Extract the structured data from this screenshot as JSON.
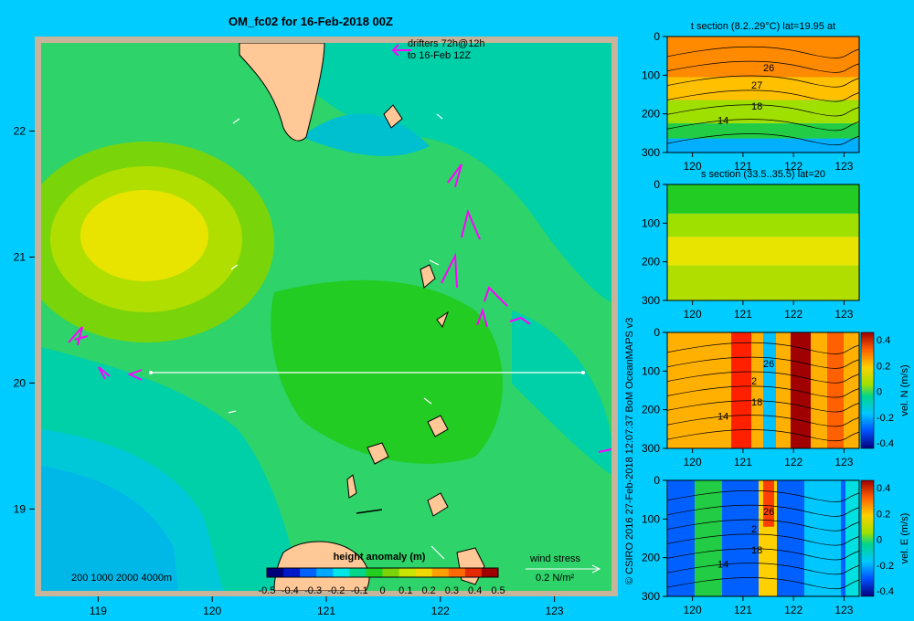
{
  "chart_data": [
    {
      "type": "heatmap",
      "title": "OM_fc02 for 16-Feb-2018 00Z",
      "x_ticks": [
        119,
        120,
        121,
        122,
        123
      ],
      "y_ticks": [
        19,
        20,
        21,
        22
      ],
      "xlim": [
        118.5,
        123.5
      ],
      "ylim": [
        18.35,
        22.7
      ],
      "section_line": {
        "lat": 20,
        "lon_from": 119.5,
        "lon_to": 123.2
      },
      "drifters_note": [
        "drifters 72h@12h",
        "to 16-Feb 12Z"
      ],
      "colorbar": {
        "label": "height anomaly (m)",
        "ticks": [
          "-0.5",
          "-0.4",
          "-0.3",
          "-0.2",
          "-0.1",
          "0",
          "0.1",
          "0.2",
          "0.3",
          "0.4",
          "0.5"
        ],
        "colors": [
          "#00007a",
          "#0019c8",
          "#0062ff",
          "#00a8ff",
          "#00e6e6",
          "#00d58a",
          "#22d022",
          "#7ad40a",
          "#c8e400",
          "#f0d800",
          "#ffa000",
          "#ff6a00",
          "#e62a00",
          "#a00000"
        ]
      },
      "depth_legend": "200  1000  2000  4000m",
      "wind_legend": {
        "label": "wind stress",
        "unit": "0.2 N/m²"
      }
    },
    {
      "type": "heatmap",
      "title": "t section (8.2..29°C) lat=19.95 at",
      "x_ticks": [
        120,
        121,
        122,
        123
      ],
      "y_ticks": [
        0,
        100,
        200,
        300
      ],
      "xlim": [
        119.5,
        123.3
      ],
      "ylim": [
        300,
        0
      ],
      "contour_labels": [
        "26",
        "27",
        "18",
        "14"
      ]
    },
    {
      "type": "heatmap",
      "title": "s section (33.5..35.5) lat=20",
      "x_ticks": [
        120,
        121,
        122,
        123
      ],
      "y_ticks": [
        0,
        100,
        200,
        300
      ],
      "xlim": [
        119.5,
        123.3
      ],
      "ylim": [
        300,
        0
      ]
    },
    {
      "type": "heatmap",
      "x_ticks": [
        120,
        121,
        122,
        123
      ],
      "y_ticks": [
        0,
        100,
        200,
        300
      ],
      "xlim": [
        119.5,
        123.3
      ],
      "ylim": [
        300,
        0
      ],
      "contour_labels": [
        "26",
        "2",
        "18",
        "14"
      ],
      "colorbar": {
        "label": "vel. N (m/s)",
        "ticks": [
          "0.4",
          "0.2",
          "0",
          "-0.2",
          "-0.4"
        ]
      }
    },
    {
      "type": "heatmap",
      "x_ticks": [
        120,
        121,
        122,
        123
      ],
      "y_ticks": [
        0,
        100,
        200,
        300
      ],
      "xlim": [
        119.5,
        123.3
      ],
      "ylim": [
        300,
        0
      ],
      "contour_labels": [
        "26",
        "2",
        "18",
        "14"
      ],
      "colorbar": {
        "label": "vel. E (m/s)",
        "ticks": [
          "0.4",
          "0.2",
          "0",
          "-0.2",
          "-0.4"
        ]
      }
    }
  ],
  "credit": "© CSIRO 2016   27-Feb-2018 12:07:37 BoM OceanMAPS v3"
}
